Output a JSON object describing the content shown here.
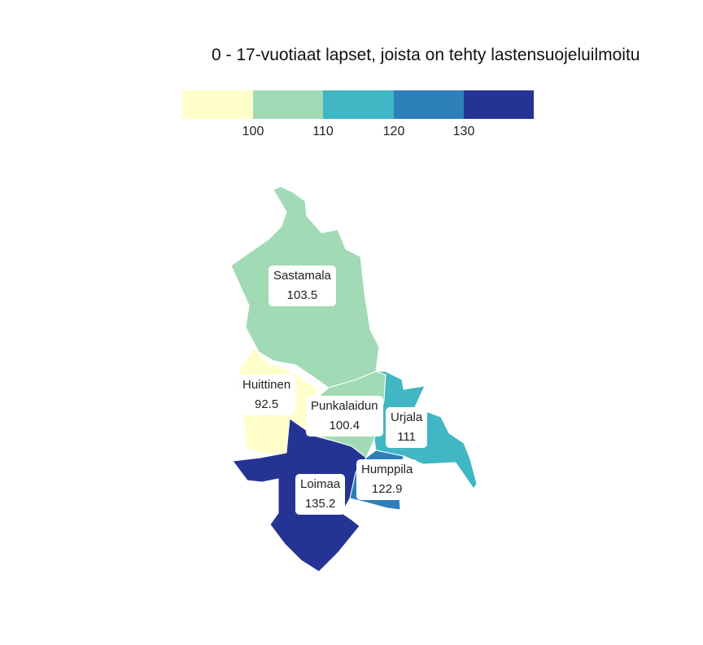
{
  "title": "0 - 17-vuotiaat lapset, joista on tehty lastensuojeluilmoitu",
  "legend": {
    "colors": [
      "#ffffcc",
      "#a1dab4",
      "#41b6c4",
      "#2c7fb8",
      "#253494"
    ],
    "ticks": [
      "100",
      "110",
      "120",
      "130"
    ]
  },
  "regions": [
    {
      "id": "sastamala",
      "name": "Sastamala",
      "value": "103.5",
      "color": "#a1dab4"
    },
    {
      "id": "huittinen",
      "name": "Huittinen",
      "value": "92.5",
      "color": "#ffffcc"
    },
    {
      "id": "punkalaidun",
      "name": "Punkalaidun",
      "value": "100.4",
      "color": "#a1dab4"
    },
    {
      "id": "urjala",
      "name": "Urjala",
      "value": "111",
      "color": "#41b6c4"
    },
    {
      "id": "humppila",
      "name": "Humppila",
      "value": "122.9",
      "color": "#2c7fb8"
    },
    {
      "id": "loimaa",
      "name": "Loimaa",
      "value": "135.2",
      "color": "#253494"
    }
  ]
}
